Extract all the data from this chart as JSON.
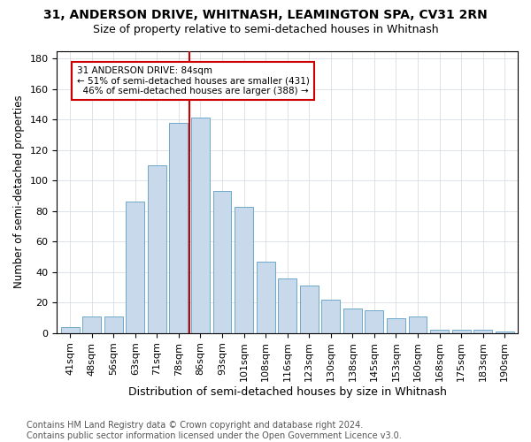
{
  "title": "31, ANDERSON DRIVE, WHITNASH, LEAMINGTON SPA, CV31 2RN",
  "subtitle": "Size of property relative to semi-detached houses in Whitnash",
  "xlabel": "Distribution of semi-detached houses by size in Whitnash",
  "ylabel": "Number of semi-detached properties",
  "categories": [
    "41sqm",
    "48sqm",
    "56sqm",
    "63sqm",
    "71sqm",
    "78sqm",
    "86sqm",
    "93sqm",
    "101sqm",
    "108sqm",
    "116sqm",
    "123sqm",
    "130sqm",
    "138sqm",
    "145sqm",
    "153sqm",
    "160sqm",
    "168sqm",
    "175sqm",
    "183sqm",
    "190sqm"
  ],
  "values": [
    4,
    11,
    11,
    86,
    110,
    138,
    141,
    93,
    83,
    47,
    36,
    31,
    22,
    16,
    15,
    10,
    11,
    2,
    2,
    2,
    1
  ],
  "bar_color": "#c8d9eb",
  "bar_edge_color": "#6fa8c8",
  "vline_color": "#cc0000",
  "vline_x": 6,
  "annotation_text": "31 ANDERSON DRIVE: 84sqm\n← 51% of semi-detached houses are smaller (431)\n  46% of semi-detached houses are larger (388) →",
  "annotation_box_color": "#ffffff",
  "annotation_box_edge_color": "#cc0000",
  "ylim": [
    0,
    185
  ],
  "yticks": [
    0,
    20,
    40,
    60,
    80,
    100,
    120,
    140,
    160,
    180
  ],
  "footer": "Contains HM Land Registry data © Crown copyright and database right 2024.\nContains public sector information licensed under the Open Government Licence v3.0.",
  "title_fontsize": 10,
  "subtitle_fontsize": 9,
  "xlabel_fontsize": 9,
  "ylabel_fontsize": 8.5,
  "tick_fontsize": 8,
  "footer_fontsize": 7
}
